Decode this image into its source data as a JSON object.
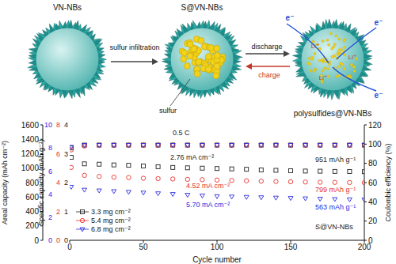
{
  "diagram": {
    "stages": [
      "VN-NBs",
      "S@VN-NBs",
      "polysulfides@VN-NBs"
    ],
    "arrows": [
      "sulfur infiltration",
      "discharge",
      "charge"
    ],
    "labels": [
      "sulfur"
    ],
    "carriers": [
      "e⁻",
      "Li⁺"
    ]
  },
  "chart_data": {
    "type": "scatter",
    "xlabel": "Cycle number",
    "ylabel": "Specific capacity (mAh g⁻¹)",
    "y2label": "Coulombic efficiency (%)",
    "areal_label": "Areal capacity (mAh cm⁻²)",
    "areal_axes": [
      {
        "color": "#222222",
        "lim": [
          0,
          4
        ],
        "ticks": [
          0,
          1,
          2,
          3,
          4
        ]
      },
      {
        "color": "#e8312a",
        "lim": [
          0,
          8
        ],
        "ticks": [
          0,
          2,
          4,
          6,
          8
        ]
      },
      {
        "color": "#2b2be0",
        "lim": [
          0,
          10
        ],
        "ticks": [
          0,
          2,
          4,
          6,
          8,
          10
        ]
      }
    ],
    "x": [
      1,
      10,
      20,
      30,
      40,
      50,
      60,
      70,
      80,
      90,
      100,
      110,
      120,
      130,
      140,
      150,
      160,
      170,
      180,
      190,
      200
    ],
    "xlim": [
      0,
      200
    ],
    "xticks": [
      0,
      50,
      100,
      150,
      200
    ],
    "ylim": [
      0,
      1600
    ],
    "yticks": [
      0,
      200,
      400,
      600,
      800,
      1000,
      1200,
      1400,
      1600
    ],
    "y2lim": [
      0,
      120
    ],
    "y2ticks": [
      0,
      20,
      40,
      60,
      80,
      100,
      120
    ],
    "legend": "left",
    "series": [
      {
        "name": "3.3 mg cm⁻²",
        "color": "#222222",
        "marker": "square",
        "values": [
          1150,
          1060,
          1055,
          1045,
          1040,
          1030,
          1020,
          1010,
          1005,
          1000,
          995,
          990,
          985,
          975,
          970,
          965,
          960,
          958,
          955,
          953,
          951
        ]
      },
      {
        "name": "5.4 mg cm⁻²",
        "color": "#e8312a",
        "marker": "circle",
        "values": [
          1010,
          900,
          885,
          875,
          870,
          860,
          855,
          850,
          845,
          840,
          835,
          830,
          825,
          820,
          815,
          812,
          808,
          805,
          803,
          801,
          799
        ]
      },
      {
        "name": "6.8 mg cm⁻²",
        "color": "#2b2be0",
        "marker": "triangle_down",
        "values": [
          740,
          700,
          690,
          680,
          670,
          660,
          650,
          640,
          630,
          620,
          610,
          605,
          600,
          595,
          590,
          585,
          580,
          575,
          570,
          566,
          563
        ]
      },
      {
        "color": "#222222",
        "marker": "square",
        "axis": "y2",
        "values": [
          96,
          99,
          99,
          99,
          99,
          99,
          99,
          99,
          99,
          99,
          99,
          99,
          99,
          99,
          99,
          99,
          99,
          99,
          99,
          99,
          99
        ]
      },
      {
        "color": "#e8312a",
        "marker": "circle",
        "axis": "y2",
        "values": [
          94,
          98,
          99,
          99,
          99,
          99,
          99,
          99,
          99,
          99,
          99,
          99,
          99,
          99,
          99,
          99,
          99,
          99,
          99,
          99,
          99
        ]
      },
      {
        "color": "#2b2be0",
        "marker": "triangle_down",
        "axis": "y2",
        "values": [
          97,
          99,
          99,
          99,
          99,
          99,
          99,
          99,
          99,
          99,
          99,
          99,
          99,
          99,
          99,
          99,
          99,
          99,
          99,
          99,
          99
        ]
      }
    ],
    "annotations": [
      {
        "text": "0.5 C",
        "color": "#222222"
      },
      {
        "text": "2.76 mA cm⁻²",
        "color": "#222222"
      },
      {
        "text": "951 mAh g⁻¹",
        "color": "#222222"
      },
      {
        "text": "4.52 mA cm⁻²",
        "color": "#e8312a"
      },
      {
        "text": "799 mAh g⁻¹",
        "color": "#e8312a"
      },
      {
        "text": "5.70 mA cm⁻²",
        "color": "#2b2be0"
      },
      {
        "text": "563 mAh g⁻¹",
        "color": "#2b2be0"
      },
      {
        "text": "S@VN-NBs",
        "color": "#222222"
      }
    ]
  }
}
